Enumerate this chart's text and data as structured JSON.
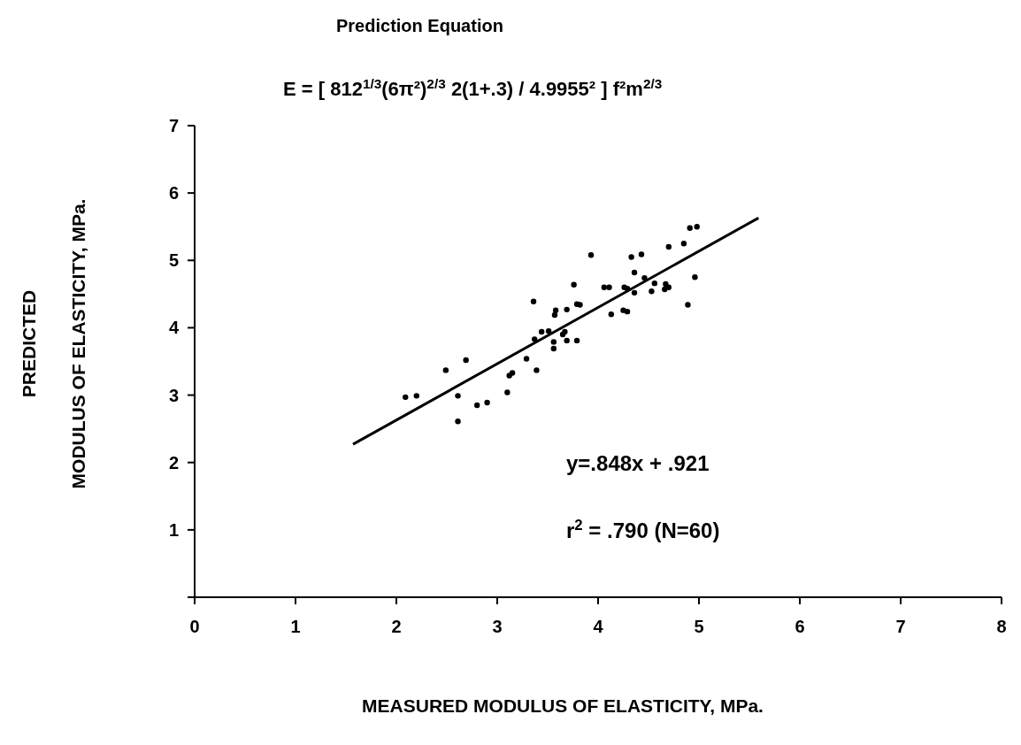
{
  "chart_data": {
    "type": "scatter",
    "title": "Prediction Equation",
    "subtitle": "E = [ 812$^{1/3}$(6π²)$^{2/3}$ 2(1+.3) / 4.9955² ]  f²m$^{2/3}$",
    "xlabel": "MEASURED MODULUS OF ELASTICITY, MPa.",
    "ylabel": "PREDICTED\nMODULUS OF ELASTICITY, MPa.",
    "xlim": [
      0,
      8
    ],
    "ylim": [
      0,
      7
    ],
    "xticks": [
      0,
      1,
      2,
      3,
      4,
      5,
      6,
      7,
      8
    ],
    "yticks": [
      {
        "value": 0,
        "label": null
      },
      1,
      2,
      3,
      4,
      5,
      6,
      7
    ],
    "grid": false,
    "marker": "circle",
    "annotations": [
      "y=.848x + .921",
      "r$^{2}$ = .790 (N=60)"
    ],
    "series": [
      {
        "color": "#000000",
        "x": [
          2.09,
          2.2,
          2.49,
          2.69,
          2.61,
          2.61,
          2.8,
          2.9,
          3.1,
          3.12,
          3.15,
          3.29,
          3.39,
          3.36,
          3.37,
          3.44,
          3.51,
          3.56,
          3.56,
          3.57,
          3.58,
          3.67,
          3.65,
          3.69,
          3.69,
          3.79,
          3.76,
          3.79,
          3.82,
          3.93,
          4.06,
          4.11,
          4.13,
          4.25,
          4.29,
          4.26,
          4.33,
          4.43,
          4.36,
          4.36,
          4.29,
          4.91,
          4.98,
          4.7,
          4.85,
          4.56,
          4.67,
          4.7,
          4.66,
          4.53,
          4.96,
          4.89,
          4.46
        ],
        "values": [
          2.97,
          2.99,
          3.37,
          3.52,
          2.99,
          2.61,
          2.85,
          2.89,
          3.04,
          3.29,
          3.33,
          3.54,
          3.37,
          4.39,
          3.83,
          3.94,
          3.95,
          3.79,
          3.69,
          4.19,
          4.26,
          3.94,
          3.9,
          4.27,
          3.81,
          3.81,
          4.64,
          4.35,
          4.34,
          5.08,
          4.6,
          4.6,
          4.2,
          4.26,
          4.24,
          4.6,
          5.05,
          5.09,
          4.82,
          4.52,
          4.58,
          5.48,
          5.5,
          5.2,
          5.25,
          4.66,
          4.65,
          4.6,
          4.57,
          4.54,
          4.75,
          4.34,
          4.74
        ]
      },
      {
        "type": "line",
        "color": "#000000",
        "line_style": "solid",
        "marker": "none",
        "x": [
          1.57,
          5.59
        ],
        "values": [
          2.27,
          5.63
        ]
      }
    ]
  }
}
